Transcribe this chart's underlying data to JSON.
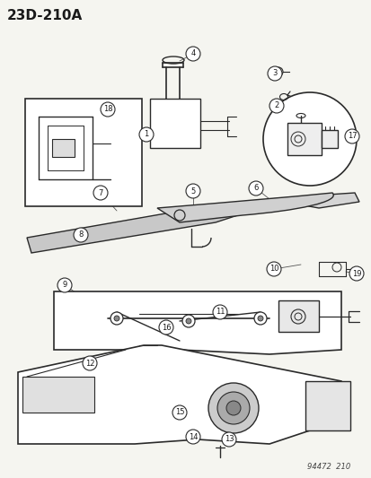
{
  "title": "23D-210A",
  "bg_color": "#f5f5f0",
  "line_color": "#2a2a2a",
  "label_color": "#1a1a1a",
  "footer_text": "94472  210",
  "part_numbers": [
    1,
    2,
    3,
    4,
    5,
    6,
    7,
    8,
    9,
    10,
    11,
    12,
    13,
    14,
    15,
    16,
    17,
    18,
    19
  ],
  "circle_bg": "#ffffff",
  "circle_border": "#2a2a2a"
}
